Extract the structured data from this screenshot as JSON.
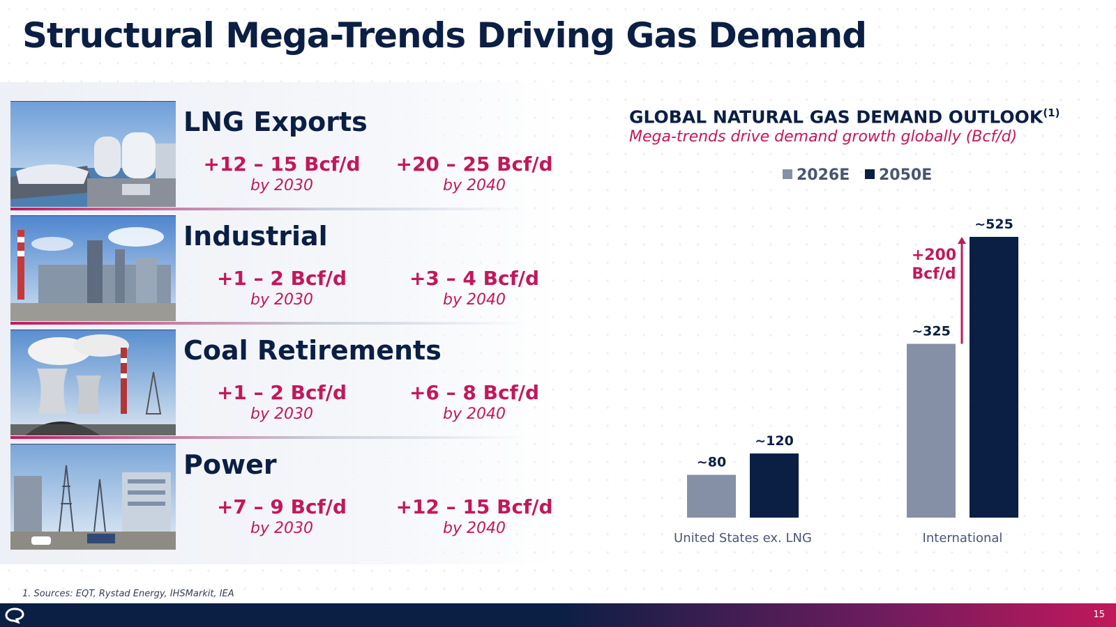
{
  "title": "Structural Mega-Trends Driving Gas Demand",
  "trends": [
    {
      "name": "LNG Exports",
      "image": "lng-terminal-photo",
      "metrics": [
        {
          "value": "+12 – 15 Bcf/d",
          "by": "by 2030"
        },
        {
          "value": "+20 – 25 Bcf/d",
          "by": "by 2040"
        }
      ]
    },
    {
      "name": "Industrial",
      "image": "industrial-plant-photo",
      "metrics": [
        {
          "value": "+1 – 2 Bcf/d",
          "by": "by 2030"
        },
        {
          "value": "+3 – 4 Bcf/d",
          "by": "by 2040"
        }
      ]
    },
    {
      "name": "Coal Retirements",
      "image": "coal-plant-photo",
      "metrics": [
        {
          "value": "+1 – 2 Bcf/d",
          "by": "by 2030"
        },
        {
          "value": "+6 – 8 Bcf/d",
          "by": "by 2040"
        }
      ]
    },
    {
      "name": "Power",
      "image": "power-substation-photo",
      "metrics": [
        {
          "value": "+7 – 9 Bcf/d",
          "by": "by 2030"
        },
        {
          "value": "+12 – 15 Bcf/d",
          "by": "by 2040"
        }
      ]
    }
  ],
  "chart_data": {
    "type": "bar",
    "title": "GLOBAL NATURAL GAS DEMAND OUTLOOK",
    "title_footnote_ref": "(1)",
    "subtitle": "Mega-trends drive demand growth globally (Bcf/d)",
    "categories": [
      "United States ex. LNG",
      "International"
    ],
    "series": [
      {
        "name": "2026E",
        "color": "#8590a6",
        "values": [
          80,
          325
        ],
        "labels": [
          "~80",
          "~325"
        ]
      },
      {
        "name": "2050E",
        "color": "#0b1f44",
        "values": [
          120,
          525
        ],
        "labels": [
          "~120",
          "~525"
        ]
      }
    ],
    "legend_position": "top",
    "ylim": [
      0,
      525
    ],
    "grid": false,
    "annotation": {
      "lines": [
        "+200",
        "Bcf/d"
      ],
      "category": "International",
      "from": 325,
      "to": 525,
      "color": "#c2185b"
    }
  },
  "footnote": "1. Sources: EQT, Rystad Energy, IHSMarkit, IEA",
  "page_number": "15",
  "colors": {
    "navy": "#0b1f44",
    "magenta": "#c2185b",
    "gray": "#8590a6"
  }
}
